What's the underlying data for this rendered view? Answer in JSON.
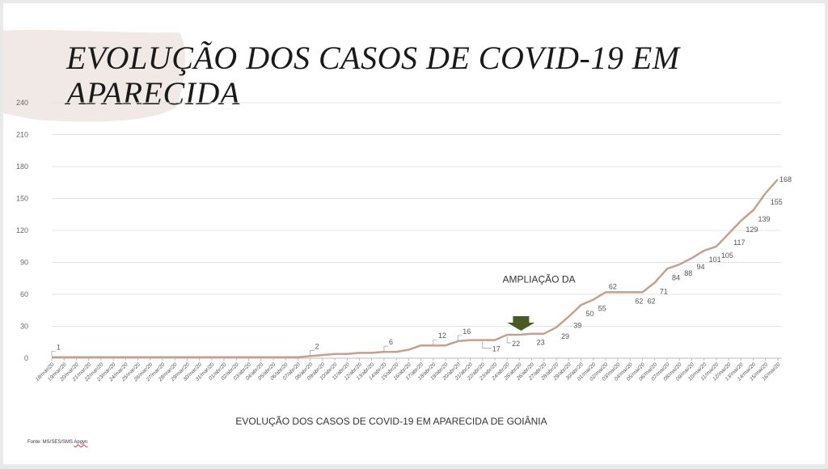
{
  "slide": {
    "title": "EVOLUÇÃO DOS CASOS DE COVID-19 EM APARECIDA",
    "source_prefix": "Fonte: MS/SES/SMS",
    "source_suffix": "Apgyn"
  },
  "chart_data": {
    "type": "line",
    "title": "EVOLUÇÃO DOS CASOS DE COVID-19 EM APARECIDA DE GOIÂNIA",
    "xlabel": "",
    "ylabel": "",
    "ylim": [
      0,
      240
    ],
    "yticks": [
      0,
      30,
      60,
      90,
      120,
      150,
      180,
      210,
      240
    ],
    "grid": true,
    "annotation": "AMPLIAÇÃO DA",
    "line_color": "#c4a08f",
    "arrow_color": "#4a5a24",
    "categories": [
      "18/mar/20",
      "19/mar/20",
      "20/mar/20",
      "21/mar/20",
      "22/mar/20",
      "23/mar/20",
      "24/mar/20",
      "25/mar/20",
      "26/mar/20",
      "27/mar/20",
      "28/mar/20",
      "29/mar/20",
      "30/mar/20",
      "31/mar/20",
      "01/abr/20",
      "02/abr/20",
      "03/abr/20",
      "04/abr/20",
      "05/abr/20",
      "06/abr/20",
      "07/abr/20",
      "08/abr/20",
      "09/abr/20",
      "10/abr/20",
      "11/abr/20",
      "12/abr/20",
      "13/abr/20",
      "14/abr/20",
      "15/abr/20",
      "16/abr/20",
      "17/abr/20",
      "18/abr/20",
      "19/abr/20",
      "20/abr/20",
      "21/abr/20",
      "22/abr/20",
      "23/abr/20",
      "24/abr/20",
      "25/abr/20",
      "26/abr/20",
      "27/abr/20",
      "28/abr/20",
      "29/abr/20",
      "30/abr/20",
      "01/mai/20",
      "02/mai/20",
      "03/mai/20",
      "04/mai/20",
      "05/mai/20",
      "06/mai/20",
      "07/mai/20",
      "08/mai/20",
      "09/mai/20",
      "10/mai/20",
      "11/mai/20",
      "12/mai/20",
      "13/mai/20",
      "14/mai/20",
      "15/mai/20",
      "16/mai/20"
    ],
    "values": [
      1,
      1,
      1,
      1,
      1,
      1,
      1,
      1,
      1,
      1,
      1,
      1,
      1,
      1,
      1,
      1,
      1,
      1,
      1,
      1,
      1,
      2,
      3,
      4,
      4,
      5,
      5,
      6,
      6,
      8,
      12,
      12,
      12,
      16,
      17,
      17,
      17,
      22,
      22,
      23,
      23,
      29,
      39,
      50,
      55,
      62,
      62,
      62,
      62,
      71,
      84,
      88,
      94,
      101,
      105,
      117,
      129,
      139,
      155,
      168
    ],
    "data_labels": [
      {
        "index": 0,
        "text": "1"
      },
      {
        "index": 21,
        "text": "2"
      },
      {
        "index": 27,
        "text": "6"
      },
      {
        "index": 31,
        "text": "12"
      },
      {
        "index": 33,
        "text": "16"
      },
      {
        "index": 35,
        "text": "17"
      },
      {
        "index": 37,
        "text": "22"
      },
      {
        "index": 39,
        "text": "23"
      },
      {
        "index": 41,
        "text": "29"
      },
      {
        "index": 42,
        "text": "39"
      },
      {
        "index": 43,
        "text": "50"
      },
      {
        "index": 44,
        "text": "55"
      },
      {
        "index": 45,
        "text": "62"
      },
      {
        "index": 47,
        "text": "62"
      },
      {
        "index": 48,
        "text": "62"
      },
      {
        "index": 49,
        "text": "71"
      },
      {
        "index": 50,
        "text": "84"
      },
      {
        "index": 51,
        "text": "88"
      },
      {
        "index": 52,
        "text": "94"
      },
      {
        "index": 53,
        "text": "101"
      },
      {
        "index": 54,
        "text": "105"
      },
      {
        "index": 55,
        "text": "117"
      },
      {
        "index": 56,
        "text": "129"
      },
      {
        "index": 57,
        "text": "139"
      },
      {
        "index": 58,
        "text": "155"
      },
      {
        "index": 59,
        "text": "168"
      }
    ]
  }
}
